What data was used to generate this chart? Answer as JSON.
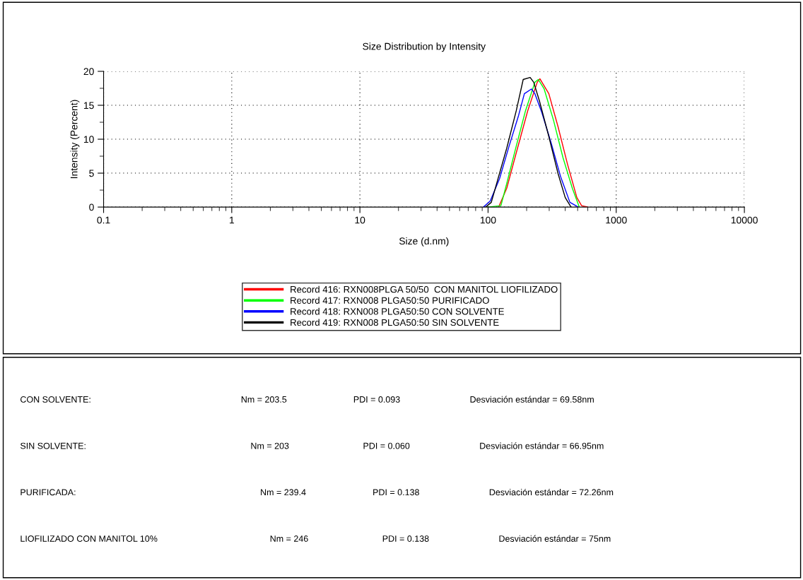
{
  "chart_data": {
    "type": "line",
    "title": "Size Distribution by Intensity",
    "xlabel": "Size (d.nm)",
    "ylabel": "Intensity (Percent)",
    "log": "x",
    "xlim": [
      0.1,
      10000
    ],
    "xticks": [
      0.1,
      1,
      10,
      100,
      1000,
      10000
    ],
    "ylim": [
      0,
      20
    ],
    "yticks": [
      0,
      5,
      10,
      15,
      20
    ],
    "grid": true,
    "legend": "bottom",
    "marker": "none",
    "line_style": "solid",
    "series": [
      {
        "name": "Record 416: RXN008PLGA 50/50  CON MANITOL LIOFILIZADO",
        "color": "#ff0000",
        "x": [
          121,
          140,
          166,
          204,
          242,
          254,
          298,
          352,
          417,
          493,
          537,
          597
        ],
        "values": [
          0,
          2.8,
          8.0,
          14.2,
          18.4,
          18.9,
          16.7,
          11.8,
          6.3,
          1.4,
          0.2,
          0
        ]
      },
      {
        "name": "Record 417: RXN008 PLGA50:50 PURIFICADO",
        "color": "#00ff00",
        "x": [
          100,
          126,
          140,
          166,
          196,
          232,
          247,
          274,
          324,
          384,
          454,
          515
        ],
        "values": [
          0,
          0.2,
          3.5,
          9.0,
          14.2,
          18.4,
          18.8,
          17.4,
          12.8,
          7.3,
          2.8,
          0
        ]
      },
      {
        "name": "Record 418: RXN008 PLGA50:50 CON SOLVENTE",
        "color": "#0000ff",
        "x": [
          92,
          104,
          123,
          146,
          173,
          192,
          218,
          232,
          263,
          311,
          368,
          435,
          505
        ],
        "values": [
          0,
          0.9,
          4.2,
          9.0,
          13.5,
          16.7,
          17.4,
          16.7,
          13.9,
          9.4,
          4.5,
          0.7,
          0
        ]
      },
      {
        "name": "Record 419: RXN008 PLGA50:50 SIN SOLVENTE",
        "color": "#000000",
        "x": [
          96,
          106,
          118,
          140,
          166,
          188,
          213,
          227,
          252,
          298,
          352,
          400,
          444
        ],
        "values": [
          0,
          0.7,
          3.8,
          8.7,
          14.2,
          18.8,
          19.1,
          18.4,
          15.6,
          10.4,
          4.9,
          1.4,
          0
        ]
      }
    ],
    "annotations": [
      "CON SOLVENTE:",
      "Nm = 203.5",
      "PDI = 0.093",
      "Desviación estándar = 69.58nm",
      "SIN SOLVENTE:",
      "Nm = 203",
      "PDI = 0.060",
      "Desviación estándar = 66.95nm",
      "PURIFICADA:",
      "Nm = 239.4",
      "PDI = 0.138",
      "Desviación estándar = 72.26nm",
      "LIOFILIZADO CON MANITOL 10%",
      "Nm = 246",
      "PDI = 0.138",
      "Desviación estándar = 75nm"
    ]
  }
}
